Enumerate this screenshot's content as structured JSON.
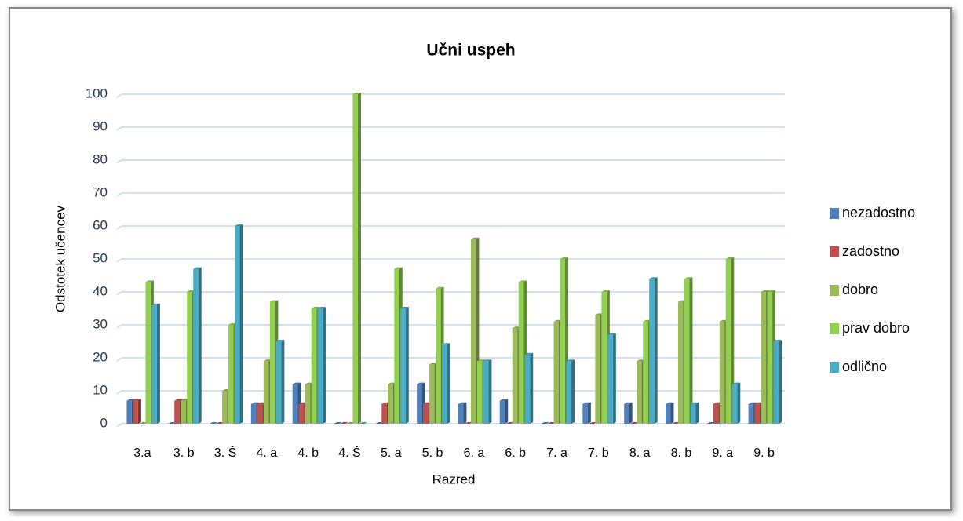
{
  "chart_data": {
    "type": "bar",
    "title": "Učni uspeh",
    "x_label": "Razred",
    "y_label": "Odstotek učencev",
    "categories": [
      "3.a",
      "3. b",
      "3. Š",
      "4. a",
      "4. b",
      "4. Š",
      "5. a",
      "5. b",
      "6. a",
      "6. b",
      "7. a",
      "7. b",
      "8. a",
      "8. b",
      "9. a",
      "9. b"
    ],
    "series": [
      {
        "name": "nezadostno",
        "color": "#4f81bd",
        "values": [
          7,
          0,
          0,
          6,
          12,
          0,
          0,
          12,
          6,
          7,
          0,
          6,
          6,
          6,
          0,
          6
        ]
      },
      {
        "name": "zadostno",
        "color": "#c0504d",
        "values": [
          7,
          7,
          0,
          6,
          6,
          0,
          6,
          6,
          0,
          0,
          0,
          0,
          0,
          0,
          6,
          6
        ]
      },
      {
        "name": "dobro",
        "color": "#9bbb59",
        "values": [
          0,
          7,
          10,
          19,
          12,
          0,
          12,
          18,
          56,
          29,
          31,
          33,
          19,
          37,
          31,
          40
        ]
      },
      {
        "name": "prav dobro",
        "color": "#92d050",
        "values": [
          43,
          40,
          30,
          37,
          35,
          100,
          47,
          41,
          19,
          43,
          50,
          40,
          31,
          44,
          50,
          40
        ]
      },
      {
        "name": "odlično",
        "color": "#4bacc6",
        "values": [
          36,
          47,
          60,
          25,
          35,
          0,
          35,
          24,
          19,
          21,
          19,
          27,
          44,
          6,
          12,
          25
        ]
      }
    ],
    "ylim": [
      0,
      100
    ],
    "yticks": [
      0,
      10,
      20,
      30,
      40,
      50,
      60,
      70,
      80,
      90,
      100
    ],
    "grid": true,
    "legend": "right"
  }
}
